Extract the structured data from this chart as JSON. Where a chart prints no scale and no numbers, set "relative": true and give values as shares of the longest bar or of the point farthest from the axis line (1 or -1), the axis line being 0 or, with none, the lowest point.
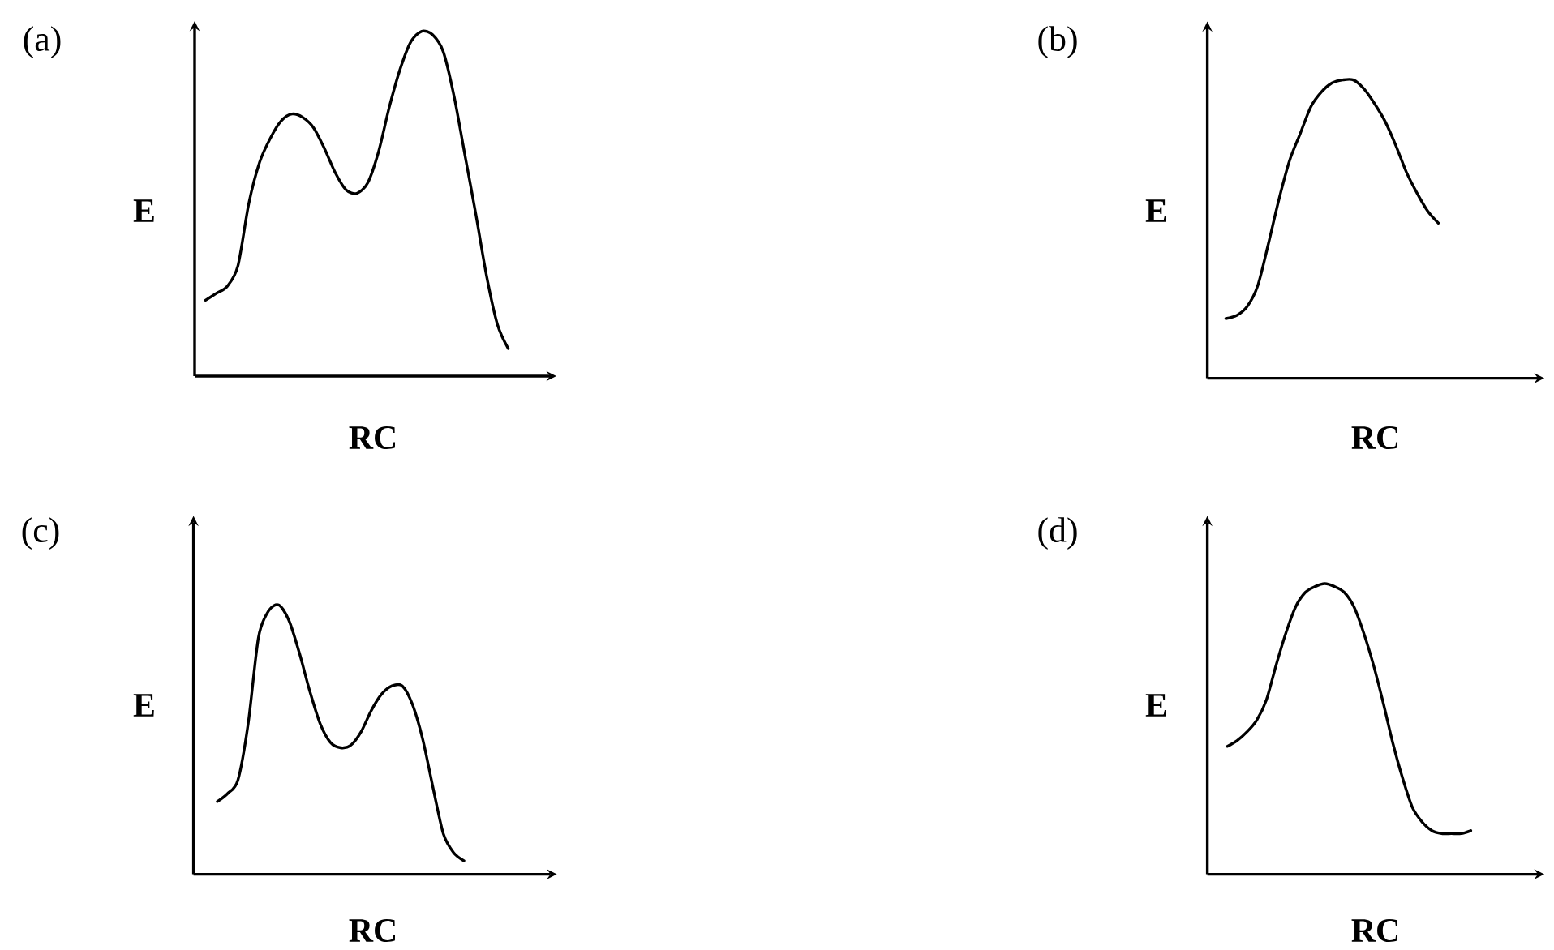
{
  "chart_data": [
    {
      "type": "line",
      "title": "(a)",
      "xlabel": "RC",
      "ylabel": "E",
      "relative": true,
      "color": "#000000",
      "categories": [
        null,
        null,
        null,
        null,
        null,
        null,
        null,
        null,
        null,
        null,
        null,
        null,
        null,
        null,
        null,
        null,
        null,
        null,
        null,
        null,
        null,
        null,
        null,
        null,
        null,
        null,
        null,
        null,
        null
      ],
      "values": [
        0.22,
        0.24,
        0.26,
        0.32,
        0.5,
        0.62,
        0.69,
        0.74,
        0.76,
        0.75,
        0.72,
        0.66,
        0.59,
        0.54,
        0.53,
        0.56,
        0.65,
        0.78,
        0.89,
        0.97,
        1,
        0.99,
        0.94,
        0.81,
        0.64,
        0.47,
        0.29,
        0.15,
        0.08
      ]
    },
    {
      "type": "line",
      "title": "(b)",
      "xlabel": "RC",
      "ylabel": "E",
      "relative": true,
      "color": "#000000",
      "categories": [
        null,
        null,
        null,
        null,
        null,
        null,
        null,
        null,
        null,
        null,
        null,
        null,
        null,
        null,
        null,
        null,
        null,
        null,
        null,
        null,
        null
      ],
      "values": [
        0.2,
        0.21,
        0.24,
        0.31,
        0.45,
        0.6,
        0.73,
        0.82,
        0.91,
        0.96,
        0.99,
        1,
        1,
        0.97,
        0.92,
        0.86,
        0.78,
        0.69,
        0.62,
        0.56,
        0.52
      ]
    },
    {
      "type": "line",
      "title": "(c)",
      "xlabel": "RC",
      "ylabel": "E",
      "relative": true,
      "color": "#000000",
      "categories": [
        null,
        null,
        null,
        null,
        null,
        null,
        null,
        null,
        null,
        null,
        null,
        null,
        null,
        null,
        null,
        null,
        null,
        null,
        null,
        null,
        null,
        null,
        null,
        null,
        null
      ],
      "values": [
        0.27,
        0.3,
        0.35,
        0.56,
        0.88,
        0.98,
        1,
        0.94,
        0.82,
        0.68,
        0.56,
        0.49,
        0.47,
        0.48,
        0.53,
        0.61,
        0.67,
        0.7,
        0.7,
        0.63,
        0.5,
        0.32,
        0.15,
        0.08,
        0.05
      ]
    },
    {
      "type": "line",
      "title": "(d)",
      "xlabel": "RC",
      "ylabel": "E",
      "relative": true,
      "color": "#000000",
      "categories": [
        null,
        null,
        null,
        null,
        null,
        null,
        null,
        null,
        null,
        null,
        null,
        null,
        null,
        null,
        null,
        null,
        null,
        null,
        null,
        null,
        null,
        null,
        null,
        null,
        null,
        null
      ],
      "values": [
        0.44,
        0.46,
        0.49,
        0.53,
        0.6,
        0.72,
        0.83,
        0.92,
        0.97,
        0.99,
        1,
        0.99,
        0.97,
        0.92,
        0.83,
        0.72,
        0.59,
        0.45,
        0.33,
        0.23,
        0.18,
        0.15,
        0.14,
        0.14,
        0.14,
        0.15
      ]
    }
  ]
}
